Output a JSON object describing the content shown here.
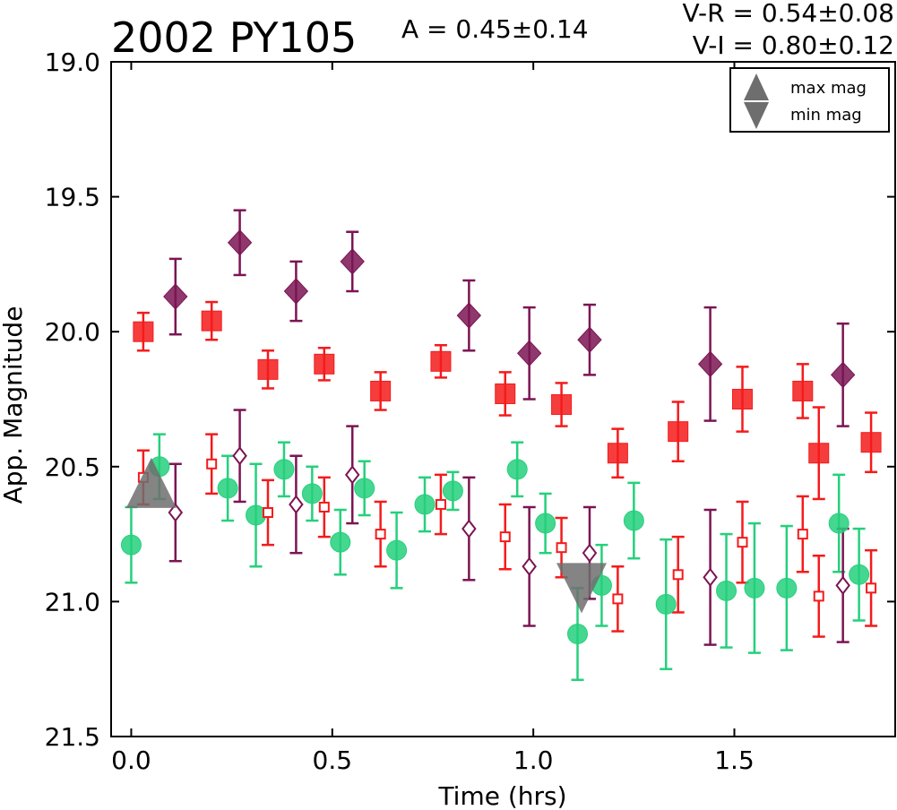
{
  "header": {
    "object_name": "2002 PY105",
    "amplitude": "A  = 0.45±0.14",
    "color_vr": "V-R = 0.54±0.08",
    "color_vi": "V-I  = 0.80±0.12"
  },
  "legend": {
    "position": "top-right",
    "max_label": "max mag",
    "min_label": "min mag"
  },
  "colors": {
    "purple": "#7b1553",
    "red": "#f41b1b",
    "green": "#25d07c",
    "gray": "#6e6e6e"
  },
  "chart_data": {
    "type": "scatter",
    "xlabel": "Time (hrs)",
    "ylabel": "App. Magnitude",
    "xlim": [
      -0.05,
      1.9
    ],
    "ylim": [
      21.5,
      19.0
    ],
    "y_inverted": true,
    "x_ticks": [
      0.0,
      0.5,
      1.0,
      1.5
    ],
    "x_tick_labels": [
      "0.0",
      "0.5",
      "1.0",
      "1.5"
    ],
    "y_ticks": [
      19.0,
      19.5,
      20.0,
      20.5,
      21.0,
      21.5
    ],
    "y_tick_labels": [
      "19.0",
      "19.5",
      "20.0",
      "20.5",
      "21.0",
      "21.5"
    ],
    "grid": false,
    "series": [
      {
        "marker": "diamond",
        "fill": "filled",
        "color": "purple",
        "x": [
          0.11,
          0.27,
          0.41,
          0.55,
          0.84,
          0.99,
          1.14,
          1.44,
          1.77
        ],
        "y": [
          19.87,
          19.67,
          19.85,
          19.74,
          19.94,
          20.08,
          20.03,
          20.12,
          20.16
        ],
        "err": [
          0.14,
          0.12,
          0.11,
          0.11,
          0.13,
          0.17,
          0.13,
          0.21,
          0.19
        ]
      },
      {
        "marker": "square",
        "fill": "filled",
        "color": "red",
        "x": [
          0.03,
          0.2,
          0.34,
          0.48,
          0.62,
          0.77,
          0.93,
          1.07,
          1.21,
          1.36,
          1.52,
          1.67,
          1.71,
          1.84
        ],
        "y": [
          20.0,
          19.96,
          20.14,
          20.12,
          20.22,
          20.11,
          20.23,
          20.27,
          20.45,
          20.37,
          20.25,
          20.22,
          20.45,
          20.41
        ],
        "err": [
          0.07,
          0.07,
          0.07,
          0.06,
          0.07,
          0.06,
          0.08,
          0.08,
          0.09,
          0.11,
          0.12,
          0.1,
          0.17,
          0.11
        ]
      },
      {
        "marker": "circle",
        "fill": "filled",
        "color": "green",
        "x": [
          0.0,
          0.07,
          0.24,
          0.31,
          0.38,
          0.45,
          0.52,
          0.58,
          0.66,
          0.73,
          0.8,
          0.96,
          1.03,
          1.11,
          1.17,
          1.25,
          1.33,
          1.48,
          1.55,
          1.63,
          1.76,
          1.81
        ],
        "y": [
          20.79,
          20.5,
          20.58,
          20.68,
          20.51,
          20.6,
          20.78,
          20.58,
          20.81,
          20.64,
          20.59,
          20.51,
          20.71,
          21.12,
          20.94,
          20.7,
          21.01,
          20.96,
          20.95,
          20.95,
          20.71,
          20.9
        ],
        "err": [
          0.14,
          0.12,
          0.12,
          0.19,
          0.1,
          0.1,
          0.12,
          0.1,
          0.14,
          0.1,
          0.07,
          0.1,
          0.11,
          0.17,
          0.15,
          0.14,
          0.24,
          0.21,
          0.24,
          0.23,
          0.18,
          0.17
        ]
      },
      {
        "marker": "diamond",
        "fill": "open",
        "color": "purple",
        "x": [
          0.11,
          0.27,
          0.41,
          0.55,
          0.84,
          0.99,
          1.14,
          1.44,
          1.77
        ],
        "y": [
          20.67,
          20.46,
          20.64,
          20.53,
          20.73,
          20.87,
          20.82,
          20.91,
          20.94
        ],
        "err": [
          0.18,
          0.17,
          0.18,
          0.18,
          0.19,
          0.22,
          0.17,
          0.25,
          0.21
        ]
      },
      {
        "marker": "square",
        "fill": "open",
        "color": "red",
        "x": [
          0.03,
          0.2,
          0.34,
          0.48,
          0.62,
          0.77,
          0.93,
          1.07,
          1.21,
          1.36,
          1.52,
          1.67,
          1.71,
          1.84
        ],
        "y": [
          20.54,
          20.49,
          20.67,
          20.65,
          20.75,
          20.64,
          20.76,
          20.8,
          20.99,
          20.9,
          20.78,
          20.75,
          20.98,
          20.95
        ],
        "err": [
          0.1,
          0.11,
          0.12,
          0.11,
          0.12,
          0.11,
          0.12,
          0.11,
          0.12,
          0.14,
          0.15,
          0.14,
          0.15,
          0.14
        ]
      },
      {
        "marker": "triangle-up",
        "fill": "filled",
        "color": "gray",
        "role": "max mag",
        "x": [
          0.05
        ],
        "y": [
          20.56
        ],
        "err": [
          0
        ]
      },
      {
        "marker": "triangle-down",
        "fill": "filled",
        "color": "gray",
        "role": "min mag",
        "x": [
          1.12
        ],
        "y": [
          20.95
        ],
        "err": [
          0
        ]
      }
    ]
  }
}
